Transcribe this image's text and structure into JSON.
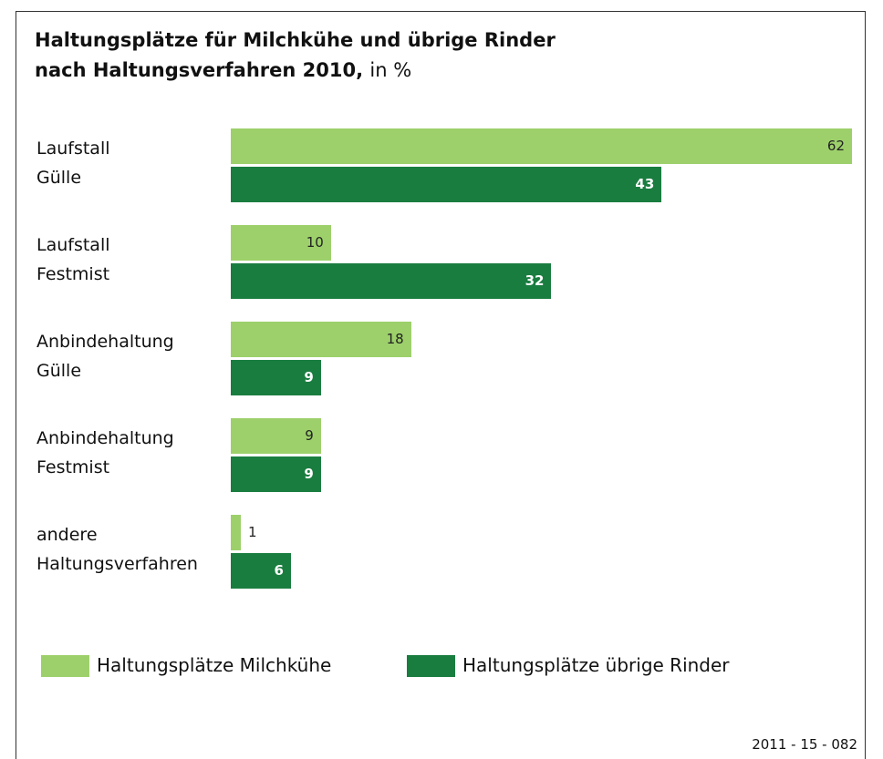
{
  "chart_data": {
    "type": "bar",
    "orientation": "horizontal",
    "title": [
      "Haltungsplätze für Milchkühe und übrige Rinder",
      "nach Haltungsverfahren 2010,"
    ],
    "unit": "in %",
    "categories": [
      "Laufstall\nGülle",
      "Laufstall\nFestmist",
      "Anbindehaltung\nGülle",
      "Anbindehaltung\nFestmist",
      "andere\nHaltungsverfahren"
    ],
    "series": [
      {
        "name": "Haltungsplätze Milchkühe",
        "color": "#9dd06b",
        "values": [
          62,
          10,
          18,
          9,
          1
        ]
      },
      {
        "name": "Haltungsplätze übrige Rinder",
        "color": "#1a7d40",
        "values": [
          43,
          32,
          9,
          9,
          6
        ]
      }
    ],
    "xlim": [
      0,
      62
    ],
    "source": "2011 - 15 - 082"
  }
}
